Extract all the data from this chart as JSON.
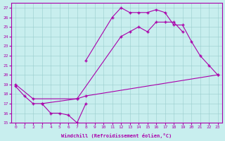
{
  "bg_color": "#c8eeee",
  "line_color": "#aa00aa",
  "grid_color": "#99cccc",
  "xlim": [
    -0.5,
    23.5
  ],
  "ylim": [
    15,
    27.5
  ],
  "xticks": [
    0,
    1,
    2,
    3,
    4,
    5,
    6,
    7,
    8,
    9,
    10,
    11,
    12,
    13,
    14,
    15,
    16,
    17,
    18,
    19,
    20,
    21,
    22,
    23
  ],
  "yticks": [
    15,
    16,
    17,
    18,
    19,
    20,
    21,
    22,
    23,
    24,
    25,
    26,
    27
  ],
  "xlabel": "Windchill (Refroidissement éolien,°C)",
  "curve1_x": [
    0,
    1,
    2,
    3,
    4,
    5,
    6,
    7,
    8
  ],
  "curve1_y": [
    18.8,
    17.8,
    17.0,
    17.0,
    16.0,
    16.0,
    15.8,
    15.0,
    17.0
  ],
  "curve2_x": [
    8,
    11,
    12,
    13,
    14,
    15,
    16,
    17,
    18,
    19,
    20,
    21,
    22,
    23
  ],
  "curve2_y": [
    21.5,
    26.0,
    27.0,
    26.5,
    26.5,
    26.5,
    26.8,
    26.5,
    25.2,
    25.2,
    23.5,
    22.0,
    21.0,
    20.0
  ],
  "curve3_x": [
    0,
    2,
    7,
    8,
    23
  ],
  "curve3_y": [
    19.0,
    17.5,
    17.5,
    17.8,
    20.0
  ],
  "curve4_x": [
    3,
    7,
    12,
    13,
    14,
    15,
    16,
    17,
    18,
    19
  ],
  "curve4_y": [
    17.0,
    17.5,
    24.0,
    24.5,
    25.0,
    24.5,
    25.5,
    25.5,
    25.5,
    24.5
  ]
}
